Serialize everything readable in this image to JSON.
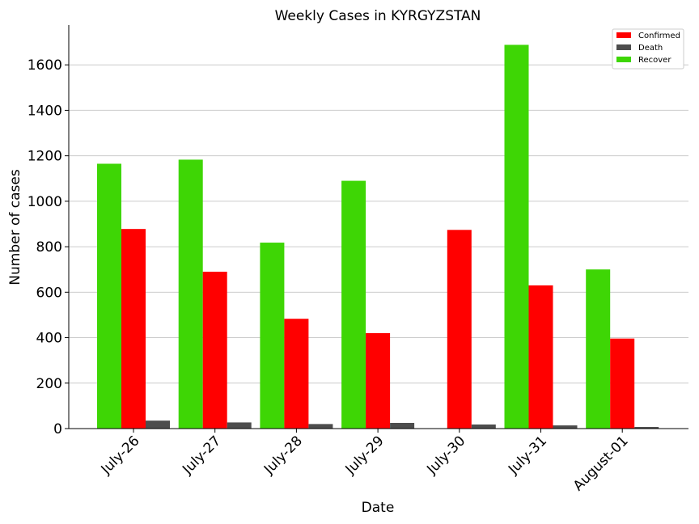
{
  "chart_data": {
    "type": "bar",
    "title": "Weekly Cases in KYRGYZSTAN",
    "xlabel": "Date",
    "ylabel": "Number of cases",
    "categories": [
      "July-26",
      "July-27",
      "July-28",
      "July-29",
      "July-30",
      "July-31",
      "August-01"
    ],
    "series": [
      {
        "name": "Recover",
        "color": "#3ed605",
        "values": [
          1165,
          1183,
          818,
          1090,
          0,
          1688,
          700
        ]
      },
      {
        "name": "Confirmed",
        "color": "#ff0000",
        "values": [
          878,
          690,
          483,
          420,
          874,
          630,
          396
        ]
      },
      {
        "name": "Death",
        "color": "#4d4d4d",
        "values": [
          35,
          27,
          20,
          25,
          18,
          14,
          7
        ]
      }
    ],
    "legend_order": [
      "Confirmed",
      "Death",
      "Recover"
    ],
    "legend_position": "top-right",
    "ylim": [
      0,
      1775
    ],
    "yticks": [
      0,
      200,
      400,
      600,
      800,
      1000,
      1200,
      1400,
      1600
    ],
    "grid": "horizontal"
  }
}
